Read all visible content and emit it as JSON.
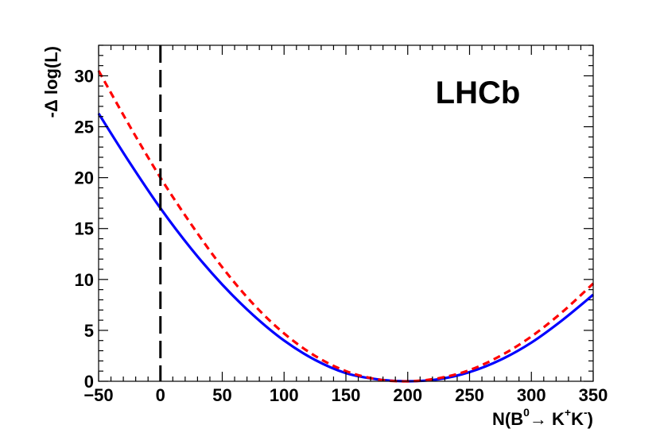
{
  "chart_data": {
    "type": "line",
    "xlabel": {
      "prefix": "N(B",
      "sup1": "0",
      "arrow": "→ K",
      "sup2": "+",
      "mid": "K",
      "sup3": "-",
      "suffix": ")"
    },
    "ylabel": "-Δ log(L)",
    "xlim": [
      -50,
      350
    ],
    "ylim": [
      0,
      33
    ],
    "xticks": [
      -50,
      0,
      50,
      100,
      150,
      200,
      250,
      300,
      350
    ],
    "xtick_labels": [
      "−50",
      "0",
      "50",
      "100",
      "150",
      "200",
      "250",
      "300",
      "350"
    ],
    "yticks": [
      0,
      5,
      10,
      15,
      20,
      25,
      30
    ],
    "ytick_labels": [
      "0",
      "5",
      "10",
      "15",
      "20",
      "25",
      "30"
    ],
    "annotation": "LHCb",
    "reference_line": {
      "x": 0,
      "style": "dashed",
      "color": "#000000"
    },
    "series": [
      {
        "color": "#0000ff",
        "style": "solid",
        "x": [
          -50,
          -25,
          0,
          25,
          50,
          75,
          100,
          125,
          150,
          175,
          200,
          225,
          250,
          275,
          300,
          325,
          350
        ],
        "y": [
          26.3,
          21.5,
          17.0,
          13.0,
          9.5,
          6.5,
          4.0,
          2.1,
          0.8,
          0.2,
          0.0,
          0.2,
          0.9,
          2.1,
          3.8,
          6.0,
          8.5
        ]
      },
      {
        "color": "#ff0000",
        "style": "dashed",
        "x": [
          -50,
          -25,
          0,
          25,
          50,
          75,
          100,
          125,
          150,
          175,
          200,
          225,
          250,
          275,
          300,
          325,
          350
        ],
        "y": [
          30.5,
          25.1,
          20.0,
          15.4,
          11.2,
          7.6,
          4.7,
          2.5,
          1.0,
          0.2,
          0.0,
          0.3,
          1.1,
          2.5,
          4.4,
          6.8,
          9.6
        ]
      }
    ],
    "grid": false
  }
}
